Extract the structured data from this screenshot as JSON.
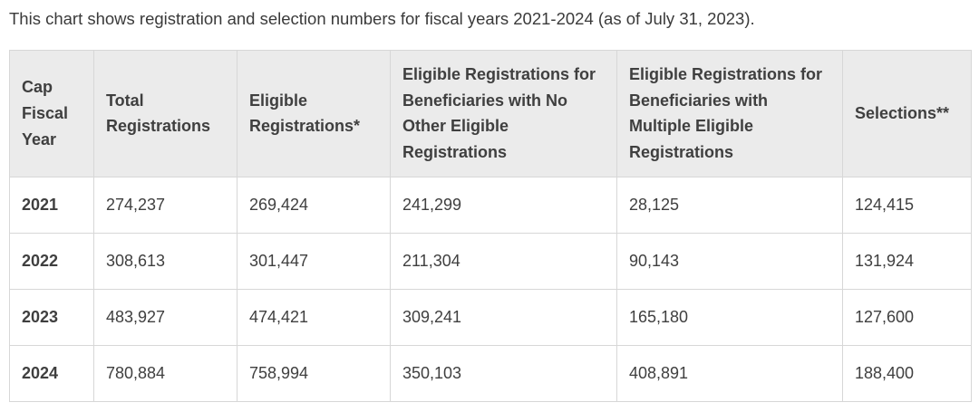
{
  "intro": "This chart shows registration and selection numbers for fiscal years 2021-2024 (as of July 31, 2023).",
  "table": {
    "headers": [
      "Cap Fiscal Year",
      "Total Registrations",
      "Eligible Registrations*",
      "Eligible Registrations for Beneficiaries with No Other Eligible Registrations",
      "Eligible Registrations for Beneficiaries with Multiple Eligible Registrations",
      "Selections**"
    ],
    "rows": [
      [
        "2021",
        "274,237",
        "269,424",
        "241,299",
        "28,125",
        "124,415"
      ],
      [
        "2022",
        "308,613",
        "301,447",
        "211,304",
        "90,143",
        "131,924"
      ],
      [
        "2023",
        "483,927",
        "474,421",
        "309,241",
        "165,180",
        "127,600"
      ],
      [
        "2024",
        "780,884",
        "758,994",
        "350,103",
        "408,891",
        "188,400"
      ]
    ]
  },
  "chart_data": {
    "type": "table",
    "title": "This chart shows registration and selection numbers for fiscal years 2021-2024 (as of July 31, 2023).",
    "columns": [
      "Cap Fiscal Year",
      "Total Registrations",
      "Eligible Registrations*",
      "Eligible Registrations for Beneficiaries with No Other Eligible Registrations",
      "Eligible Registrations for Beneficiaries with Multiple Eligible Registrations",
      "Selections**"
    ],
    "rows": [
      {
        "cap_fiscal_year": 2021,
        "total_registrations": 274237,
        "eligible_registrations": 269424,
        "eligible_registrations_no_other_eligible": 241299,
        "eligible_registrations_multiple_eligible": 28125,
        "selections": 124415
      },
      {
        "cap_fiscal_year": 2022,
        "total_registrations": 308613,
        "eligible_registrations": 301447,
        "eligible_registrations_no_other_eligible": 211304,
        "eligible_registrations_multiple_eligible": 90143,
        "selections": 131924
      },
      {
        "cap_fiscal_year": 2023,
        "total_registrations": 483927,
        "eligible_registrations": 474421,
        "eligible_registrations_no_other_eligible": 309241,
        "eligible_registrations_multiple_eligible": 165180,
        "selections": 127600
      },
      {
        "cap_fiscal_year": 2024,
        "total_registrations": 780884,
        "eligible_registrations": 758994,
        "eligible_registrations_no_other_eligible": 350103,
        "eligible_registrations_multiple_eligible": 408891,
        "selections": 188400
      }
    ]
  },
  "colors": {
    "header_background": "#ebebeb",
    "border": "#d7d7d7",
    "text": "#3f3f3f"
  }
}
